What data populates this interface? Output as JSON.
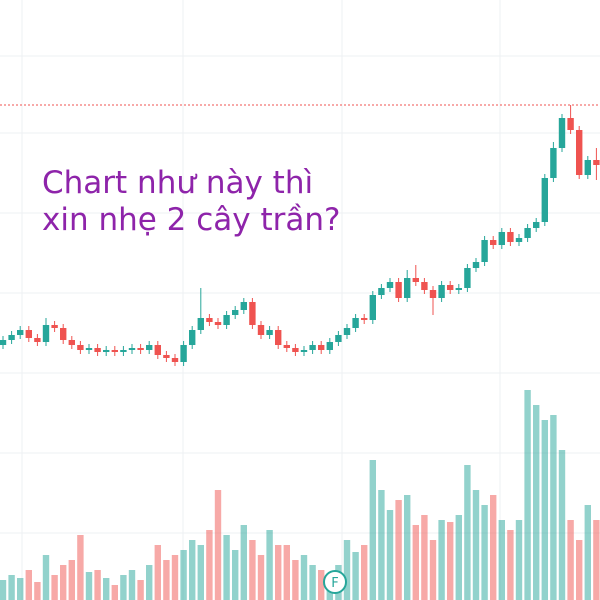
{
  "chart_data": {
    "type": "candlestick",
    "annotations": [
      "Chart như này thì",
      "xin nhẹ 2 cây trần?"
    ],
    "marker_label": "F",
    "up_color": "#26a69a",
    "down_color": "#ef5350",
    "text_color": "#8e24aa",
    "ylim": [
      0,
      600
    ],
    "volume_lim": [
      0,
      600
    ],
    "open": [
      255,
      260,
      265,
      270,
      262,
      258,
      275,
      272,
      260,
      255,
      250,
      252,
      248,
      250,
      248,
      250,
      252,
      250,
      255,
      245,
      242,
      238,
      255,
      270,
      282,
      278,
      275,
      285,
      290,
      298,
      275,
      265,
      270,
      255,
      252,
      248,
      250,
      255,
      250,
      258,
      265,
      272,
      282,
      280,
      305,
      312,
      318,
      302,
      322,
      318,
      310,
      302,
      315,
      310,
      312,
      332,
      338,
      360,
      355,
      368,
      358,
      362,
      372,
      378,
      422,
      452,
      482,
      470,
      425,
      440
    ],
    "high": [
      264,
      269,
      274,
      274,
      266,
      282,
      279,
      276,
      264,
      259,
      256,
      256,
      254,
      254,
      254,
      256,
      256,
      259,
      259,
      249,
      246,
      259,
      274,
      312,
      286,
      282,
      289,
      294,
      302,
      302,
      279,
      274,
      274,
      259,
      256,
      254,
      259,
      259,
      262,
      269,
      276,
      286,
      286,
      309,
      316,
      322,
      322,
      330,
      335,
      322,
      314,
      319,
      319,
      316,
      336,
      342,
      364,
      364,
      372,
      372,
      366,
      376,
      382,
      426,
      458,
      486,
      495,
      474,
      444,
      452
    ],
    "low": [
      251,
      256,
      261,
      258,
      254,
      254,
      268,
      256,
      251,
      246,
      246,
      244,
      244,
      244,
      244,
      246,
      246,
      246,
      241,
      238,
      234,
      234,
      251,
      266,
      274,
      271,
      271,
      281,
      286,
      271,
      261,
      261,
      251,
      248,
      244,
      244,
      246,
      246,
      246,
      254,
      261,
      268,
      276,
      276,
      301,
      308,
      298,
      298,
      314,
      306,
      285,
      298,
      306,
      306,
      308,
      328,
      334,
      351,
      351,
      354,
      354,
      358,
      368,
      374,
      418,
      448,
      466,
      421,
      421,
      420
    ],
    "close": [
      260,
      265,
      270,
      262,
      258,
      275,
      272,
      260,
      255,
      250,
      252,
      248,
      250,
      248,
      250,
      252,
      250,
      255,
      245,
      242,
      238,
      255,
      270,
      282,
      278,
      275,
      285,
      290,
      298,
      275,
      265,
      270,
      255,
      252,
      248,
      250,
      255,
      250,
      258,
      265,
      272,
      282,
      280,
      305,
      312,
      318,
      302,
      322,
      318,
      310,
      302,
      315,
      310,
      312,
      332,
      338,
      360,
      355,
      368,
      358,
      362,
      372,
      378,
      422,
      452,
      482,
      470,
      425,
      440,
      435
    ],
    "volume": [
      20,
      25,
      22,
      30,
      18,
      45,
      25,
      35,
      40,
      65,
      28,
      30,
      22,
      15,
      25,
      30,
      20,
      35,
      55,
      40,
      45,
      50,
      60,
      55,
      70,
      110,
      65,
      50,
      75,
      60,
      45,
      70,
      55,
      55,
      40,
      45,
      35,
      30,
      20,
      35,
      60,
      48,
      55,
      140,
      110,
      90,
      100,
      105,
      75,
      85,
      60,
      80,
      78,
      85,
      135,
      110,
      95,
      105,
      80,
      70,
      80,
      210,
      195,
      180,
      185,
      150,
      80,
      60,
      95,
      80
    ]
  }
}
